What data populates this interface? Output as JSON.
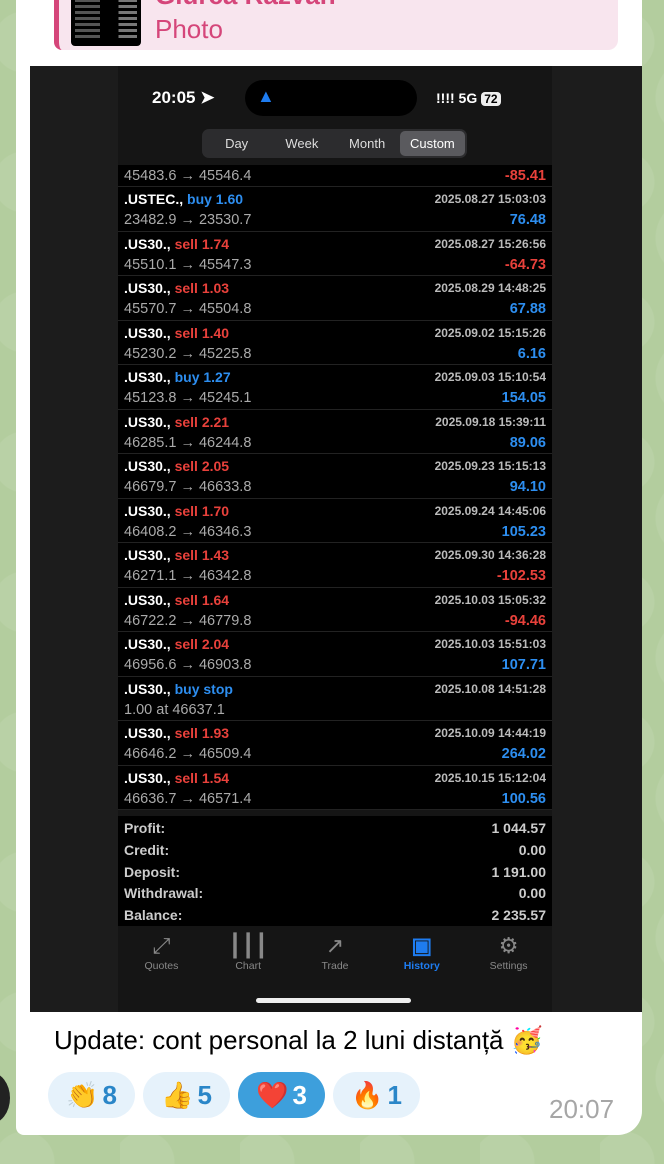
{
  "reply": {
    "name": "Giurca Razvan",
    "type": "Photo",
    "accent": "#d5467a"
  },
  "status_bar": {
    "time": "20:05",
    "nav_icon": "location-arrow-icon",
    "signal": "!!!!",
    "network": "5G",
    "battery": "72"
  },
  "period_tabs": [
    {
      "label": "Day",
      "active": false
    },
    {
      "label": "Week",
      "active": false
    },
    {
      "label": "Month",
      "active": false
    },
    {
      "label": "Custom",
      "active": true
    }
  ],
  "partial_row": {
    "prices": "45483.6 → 45546.4",
    "profit": "-85.41"
  },
  "trades": [
    {
      "symbol": ".USTEC.,",
      "side": "buy",
      "volume": "1.60",
      "datetime": "2025.08.27 15:03:03",
      "prices": "23482.9 → 23530.7",
      "profit": "76.48"
    },
    {
      "symbol": ".US30.,",
      "side": "sell",
      "volume": "1.74",
      "datetime": "2025.08.27 15:26:56",
      "prices": "45510.1 → 45547.3",
      "profit": "-64.73"
    },
    {
      "symbol": ".US30.,",
      "side": "sell",
      "volume": "1.03",
      "datetime": "2025.08.29 14:48:25",
      "prices": "45570.7 → 45504.8",
      "profit": "67.88"
    },
    {
      "symbol": ".US30.,",
      "side": "sell",
      "volume": "1.40",
      "datetime": "2025.09.02 15:15:26",
      "prices": "45230.2 → 45225.8",
      "profit": "6.16"
    },
    {
      "symbol": ".US30.,",
      "side": "buy",
      "volume": "1.27",
      "datetime": "2025.09.03 15:10:54",
      "prices": "45123.8 → 45245.1",
      "profit": "154.05"
    },
    {
      "symbol": ".US30.,",
      "side": "sell",
      "volume": "2.21",
      "datetime": "2025.09.18 15:39:11",
      "prices": "46285.1 → 46244.8",
      "profit": "89.06"
    },
    {
      "symbol": ".US30.,",
      "side": "sell",
      "volume": "2.05",
      "datetime": "2025.09.23 15:15:13",
      "prices": "46679.7 → 46633.8",
      "profit": "94.10"
    },
    {
      "symbol": ".US30.,",
      "side": "sell",
      "volume": "1.70",
      "datetime": "2025.09.24 14:45:06",
      "prices": "46408.2 → 46346.3",
      "profit": "105.23"
    },
    {
      "symbol": ".US30.,",
      "side": "sell",
      "volume": "1.43",
      "datetime": "2025.09.30 14:36:28",
      "prices": "46271.1 → 46342.8",
      "profit": "-102.53"
    },
    {
      "symbol": ".US30.,",
      "side": "sell",
      "volume": "1.64",
      "datetime": "2025.10.03 15:05:32",
      "prices": "46722.2 → 46779.8",
      "profit": "-94.46"
    },
    {
      "symbol": ".US30.,",
      "side": "sell",
      "volume": "2.04",
      "datetime": "2025.10.03 15:51:03",
      "prices": "46956.6 → 46903.8",
      "profit": "107.71"
    },
    {
      "symbol": ".US30.,",
      "side": "buy stop",
      "volume": "",
      "datetime": "2025.10.08 14:51:28",
      "prices": "1.00 at 46637.1",
      "profit": ""
    },
    {
      "symbol": ".US30.,",
      "side": "sell",
      "volume": "1.93",
      "datetime": "2025.10.09 14:44:19",
      "prices": "46646.2 → 46509.4",
      "profit": "264.02"
    },
    {
      "symbol": ".US30.,",
      "side": "sell",
      "volume": "1.54",
      "datetime": "2025.10.15 15:12:04",
      "prices": "46636.7 → 46571.4",
      "profit": "100.56"
    }
  ],
  "summary": [
    {
      "label": "Profit:",
      "value": "1 044.57"
    },
    {
      "label": "Credit:",
      "value": "0.00"
    },
    {
      "label": "Deposit:",
      "value": "1 191.00"
    },
    {
      "label": "Withdrawal:",
      "value": "0.00"
    },
    {
      "label": "Balance:",
      "value": "2 235.57"
    }
  ],
  "bottom_tabs": [
    {
      "label": "Quotes",
      "icon": "quotes-arrows-icon",
      "glyph": "⤢",
      "active": false
    },
    {
      "label": "Chart",
      "icon": "candlestick-chart-icon",
      "glyph": "┃┃┃",
      "active": false
    },
    {
      "label": "Trade",
      "icon": "trade-trend-icon",
      "glyph": "↗",
      "active": false
    },
    {
      "label": "History",
      "icon": "inbox-tray-icon",
      "glyph": "▣",
      "active": true
    },
    {
      "label": "Settings",
      "icon": "gear-icon",
      "glyph": "⚙",
      "active": false
    }
  ],
  "colors": {
    "buy": "#2d8ef0",
    "sell": "#e8413b",
    "active_tab": "#1e7cf0"
  },
  "message": {
    "caption": "Update: cont personal la 2 luni distanță 🥳",
    "time": "20:07"
  },
  "reactions": [
    {
      "emoji": "👏",
      "count": "8",
      "selected": false
    },
    {
      "emoji": "👍",
      "count": "5",
      "selected": false
    },
    {
      "emoji": "❤️",
      "count": "3",
      "selected": true
    },
    {
      "emoji": "🔥",
      "count": "1",
      "selected": false
    }
  ]
}
